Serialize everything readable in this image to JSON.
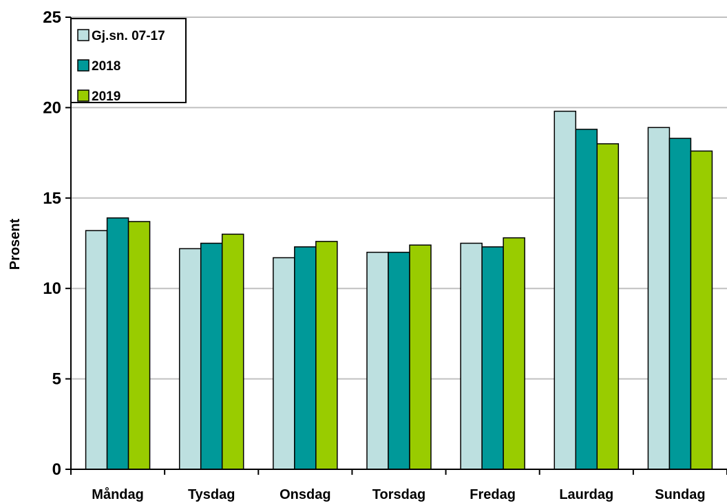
{
  "chart_data": {
    "type": "bar",
    "ylabel": "Prosent",
    "xlabel": "",
    "ylim": [
      0,
      25
    ],
    "yticks": [
      0,
      5,
      10,
      15,
      20,
      25
    ],
    "grid": "horizontal",
    "legend_position": "top-left",
    "categories": [
      "Måndag",
      "Tysdag",
      "Onsdag",
      "Torsdag",
      "Fredag",
      "Laurdag",
      "Sundag"
    ],
    "series": [
      {
        "name": "Gj.sn. 07-17",
        "color": "#bde0e0",
        "values": [
          13.2,
          12.2,
          11.7,
          12.0,
          12.5,
          19.8,
          18.9
        ]
      },
      {
        "name": "2018",
        "color": "#009999",
        "values": [
          13.9,
          12.5,
          12.3,
          12.0,
          12.3,
          18.8,
          18.3
        ]
      },
      {
        "name": "2019",
        "color": "#99cc00",
        "values": [
          13.7,
          13.0,
          12.6,
          12.4,
          12.8,
          18.0,
          17.6
        ]
      }
    ]
  }
}
